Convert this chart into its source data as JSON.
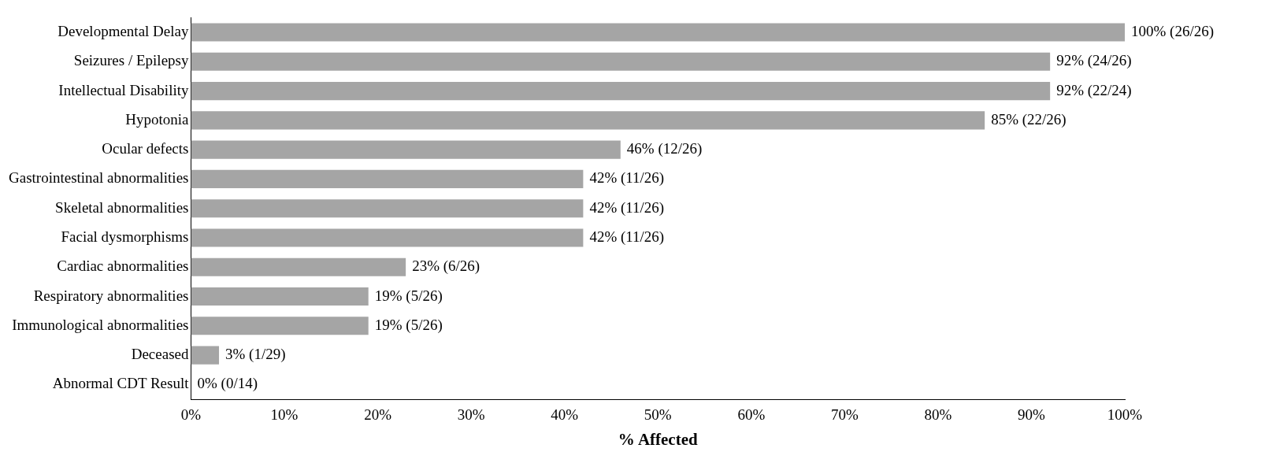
{
  "chart_data": {
    "type": "bar",
    "orientation": "horizontal",
    "xlabel": "% Affected",
    "categories": [
      "Developmental Delay",
      "Seizures / Epilepsy",
      "Intellectual Disability",
      "Hypotonia",
      "Ocular defects",
      "Gastrointestinal abnormalities",
      "Skeletal abnormalities",
      "Facial dysmorphisms",
      "Cardiac abnormalities",
      "Respiratory abnormalities",
      "Immunological abnormalities",
      "Deceased",
      "Abnormal CDT Result"
    ],
    "values": [
      100,
      92,
      92,
      85,
      46,
      42,
      42,
      42,
      23,
      19,
      19,
      3,
      0
    ],
    "value_labels": [
      "100% (26/26)",
      "92% (24/26)",
      "92% (22/24)",
      "85% (22/26)",
      "46% (12/26)",
      "42% (11/26)",
      "42% (11/26)",
      "42% (11/26)",
      "23% (6/26)",
      "19% (5/26)",
      "19% (5/26)",
      "3% (1/29)",
      "0% (0/14)"
    ],
    "color": "#a5a5a5",
    "xlim": [
      0,
      100
    ],
    "xticks": [
      {
        "value": 0,
        "label": "0%"
      },
      {
        "value": 10,
        "label": "10%"
      },
      {
        "value": 20,
        "label": "20%"
      },
      {
        "value": 30,
        "label": "30%"
      },
      {
        "value": 40,
        "label": "40%"
      },
      {
        "value": 50,
        "label": "50%"
      },
      {
        "value": 60,
        "label": "60%"
      },
      {
        "value": 70,
        "label": "70%"
      },
      {
        "value": 80,
        "label": "80%"
      },
      {
        "value": 90,
        "label": "90%"
      },
      {
        "value": 100,
        "label": "100%"
      }
    ],
    "grid": false,
    "legend": false
  }
}
